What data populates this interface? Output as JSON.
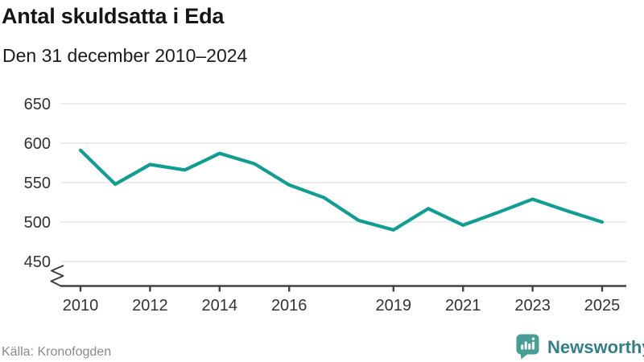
{
  "header": {
    "title": "Antal skuldsatta i Eda",
    "subtitle": "Den 31 december 2010–2024"
  },
  "footer": {
    "source": "Källa: Kronofogden",
    "brand": "Newsworthy"
  },
  "colors": {
    "line": "#129c92",
    "grid": "#e1e1e1",
    "axis": "#404040",
    "tick_label": "#333333",
    "source_text": "#8a8a8a",
    "logo_bubble": "#4a9d95",
    "logo_glyph": "#ffffff",
    "logo_text": "#377f87"
  },
  "chart_data": {
    "type": "line",
    "title": "Antal skuldsatta i Eda",
    "subtitle": "Den 31 december 2010–2024",
    "source": "Källa: Kronofogden",
    "x": [
      2010,
      2011,
      2012,
      2013,
      2014,
      2015,
      2016,
      2017,
      2018,
      2019,
      2020,
      2021,
      2022,
      2023,
      2024,
      2025
    ],
    "values": [
      591,
      548,
      573,
      566,
      587,
      574,
      547,
      531,
      502,
      490,
      517,
      496,
      512,
      529,
      514,
      500
    ],
    "series_name": "Antal skuldsatta",
    "xticks": [
      2010,
      2012,
      2014,
      2016,
      2019,
      2021,
      2023,
      2025
    ],
    "yticks": [
      450,
      500,
      550,
      600,
      650
    ],
    "ylim": [
      450,
      650
    ],
    "axis_break": true,
    "grid": true,
    "legend": false
  }
}
